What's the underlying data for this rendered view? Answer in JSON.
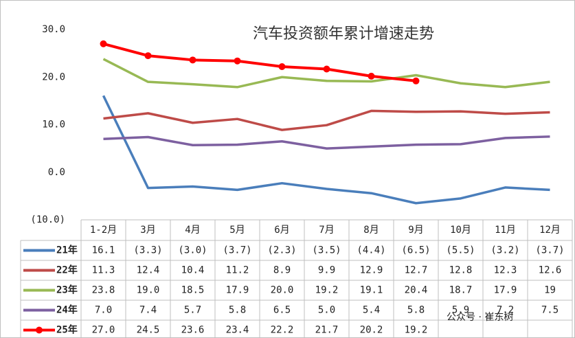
{
  "chart_data": {
    "type": "line",
    "title": "汽车投资额年累计增速走势",
    "categories": [
      "1-2月",
      "3月",
      "4月",
      "5月",
      "6月",
      "7月",
      "8月",
      "9月",
      "10月",
      "11月",
      "12月"
    ],
    "ylim": [
      -10,
      30
    ],
    "yticks": [
      {
        "value": 30,
        "label": "30.0"
      },
      {
        "value": 20,
        "label": "20.0"
      },
      {
        "value": 10,
        "label": "10.0"
      },
      {
        "value": 0,
        "label": "0.0"
      },
      {
        "value": -10,
        "label": "(10.0)"
      }
    ],
    "data_table": true,
    "watermark": "公众号 · 崔东树",
    "series": [
      {
        "name": "21年",
        "color": "#4a7ebb",
        "values": [
          16.1,
          -3.3,
          -3.0,
          -3.7,
          -2.3,
          -3.5,
          -4.4,
          -6.5,
          -5.5,
          -3.2,
          -3.7
        ],
        "value_labels": [
          "16.1",
          "(3.3)",
          "(3.0)",
          "(3.7)",
          "(2.3)",
          "(3.5)",
          "(4.4)",
          "(6.5)",
          "(5.5)",
          "(3.2)",
          "(3.7)"
        ]
      },
      {
        "name": "22年",
        "color": "#be4b48",
        "values": [
          11.3,
          12.4,
          10.4,
          11.2,
          8.9,
          9.9,
          12.9,
          12.7,
          12.8,
          12.3,
          12.6
        ]
      },
      {
        "name": "23年",
        "color": "#98b954",
        "values": [
          23.8,
          19.0,
          18.5,
          17.9,
          20.0,
          19.2,
          19.1,
          20.4,
          18.7,
          17.9,
          19
        ],
        "value_labels": [
          "23.8",
          "19.0",
          "18.5",
          "17.9",
          "20.0",
          "19.2",
          "19.1",
          "20.4",
          "18.7",
          "17.9",
          "19"
        ]
      },
      {
        "name": "24年",
        "color": "#7d60a0",
        "values": [
          7.0,
          7.4,
          5.7,
          5.8,
          6.5,
          5.0,
          5.4,
          5.8,
          5.9,
          7.2,
          7.5
        ],
        "value_labels": [
          "7.0",
          "7.4",
          "5.7",
          "5.8",
          "6.5",
          "5.0",
          "5.4",
          "5.8",
          "5.9",
          "7.2",
          "7.5"
        ]
      },
      {
        "name": "25年",
        "color": "#ff0000",
        "marker": "circle",
        "values": [
          27.0,
          24.5,
          23.6,
          23.4,
          22.2,
          21.7,
          20.2,
          19.2,
          null,
          null,
          null
        ],
        "value_labels": [
          "27.0",
          "24.5",
          "23.6",
          "23.4",
          "22.2",
          "21.7",
          "20.2",
          "19.2",
          null,
          null,
          null
        ]
      }
    ]
  }
}
